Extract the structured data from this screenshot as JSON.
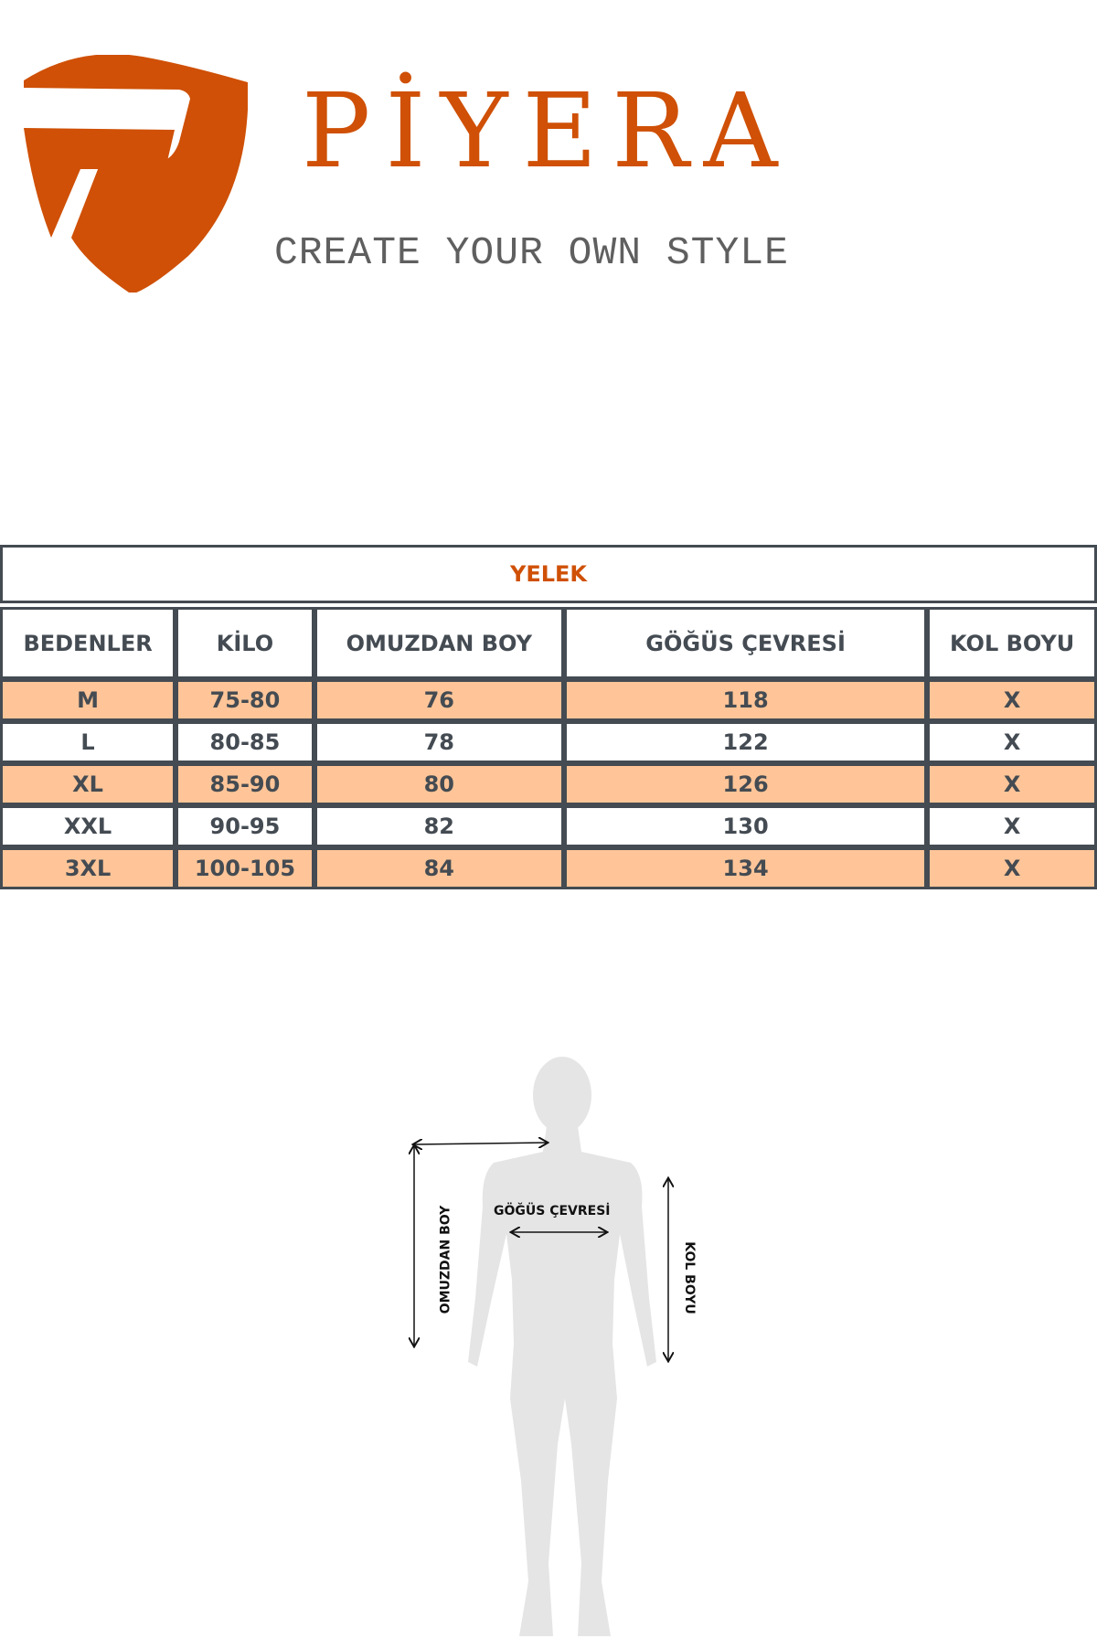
{
  "brand": {
    "name": "PİYERA",
    "tagline": "CREATE YOUR OWN STYLE",
    "color": "#cf5006"
  },
  "table": {
    "title": "YELEK",
    "headers": [
      "BEDENLER",
      "KİLO",
      "OMUZDAN BOY",
      "GÖĞÜS ÇEVRESİ",
      "KOL BOYU"
    ],
    "rows": [
      [
        "M",
        "75-80",
        "76",
        "118",
        "X"
      ],
      [
        "L",
        "80-85",
        "78",
        "122",
        "X"
      ],
      [
        "XL",
        "85-90",
        "80",
        "126",
        "X"
      ],
      [
        "XXL",
        "90-95",
        "82",
        "130",
        "X"
      ],
      [
        "3XL",
        "100-105",
        "84",
        "134",
        "X"
      ]
    ],
    "highlight_color": "#ffc598"
  },
  "diagram": {
    "shoulder_label": "OMUZDAN BOY",
    "chest_label": "GÖĞÜS ÇEVRESİ",
    "sleeve_label": "KOL BOYU"
  }
}
